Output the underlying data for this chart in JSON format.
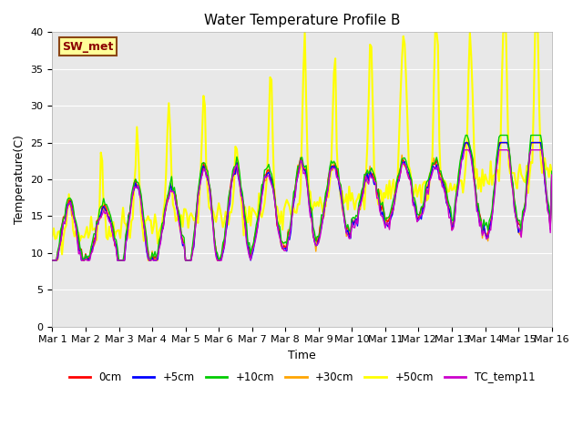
{
  "title": "Water Temperature Profile B",
  "xlabel": "Time",
  "ylabel": "Temperature(C)",
  "ylim": [
    0,
    40
  ],
  "xlim": [
    0,
    360
  ],
  "plot_bg_color": "#e8e8e8",
  "annotation_text": "SW_met",
  "annotation_color": "#8b0000",
  "annotation_bg": "#ffff99",
  "annotation_border": "#8b4513",
  "xtick_labels": [
    "Mar 1",
    "Mar 2",
    "Mar 3",
    "Mar 4",
    "Mar 5",
    "Mar 6",
    "Mar 7",
    "Mar 8",
    "Mar 9",
    "Mar 10",
    "Mar 11",
    "Mar 12",
    "Mar 13",
    "Mar 14",
    "Mar 15",
    "Mar 16"
  ],
  "xtick_positions": [
    0,
    24,
    48,
    72,
    96,
    120,
    144,
    168,
    192,
    216,
    240,
    264,
    288,
    312,
    336,
    360
  ],
  "ytick_labels": [
    "0",
    "5",
    "10",
    "15",
    "20",
    "25",
    "30",
    "35",
    "40"
  ],
  "ytick_positions": [
    0,
    5,
    10,
    15,
    20,
    25,
    30,
    35,
    40
  ],
  "series": {
    "0cm": {
      "color": "#ff0000",
      "lw": 1.0
    },
    "+5cm": {
      "color": "#0000ff",
      "lw": 1.0
    },
    "+10cm": {
      "color": "#00cc00",
      "lw": 1.0
    },
    "+30cm": {
      "color": "#ffa500",
      "lw": 1.0
    },
    "+50cm": {
      "color": "#ffff00",
      "lw": 1.5
    },
    "TC_temp11": {
      "color": "#cc00cc",
      "lw": 1.0
    }
  },
  "legend_order": [
    "0cm",
    "+5cm",
    "+10cm",
    "+30cm",
    "+50cm",
    "TC_temp11"
  ],
  "title_fontsize": 11,
  "axis_fontsize": 9,
  "tick_fontsize": 8
}
